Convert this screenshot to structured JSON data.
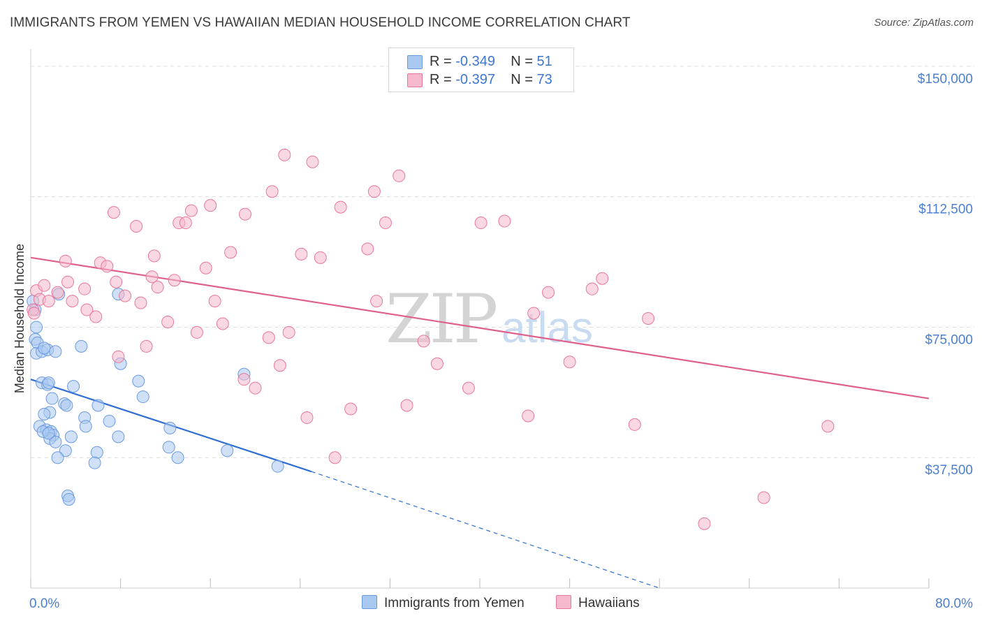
{
  "title": "IMMIGRANTS FROM YEMEN VS HAWAIIAN MEDIAN HOUSEHOLD INCOME CORRELATION CHART",
  "source": "Source: ZipAtlas.com",
  "watermark": {
    "zip": "ZIP",
    "atlas": "atlas"
  },
  "legend": {
    "rows": [
      {
        "r_label": "R =",
        "r_value": "-0.349",
        "n_label": "N =",
        "n_value": "51",
        "color": "#a9c8f0"
      },
      {
        "r_label": "R =",
        "r_value": "-0.397",
        "n_label": "N =",
        "n_value": "73",
        "color": "#f6b8cc"
      }
    ]
  },
  "bottom_legend": [
    {
      "label": "Immigrants from Yemen",
      "color": "#a9c8f0"
    },
    {
      "label": "Hawaiians",
      "color": "#f6b8cc"
    }
  ],
  "chart_data": {
    "type": "scatter",
    "title": "IMMIGRANTS FROM YEMEN VS HAWAIIAN MEDIAN HOUSEHOLD INCOME CORRELATION CHART",
    "xlabel": "",
    "ylabel": "Median Household Income",
    "xlim": [
      0,
      80
    ],
    "ylim": [
      0,
      155000
    ],
    "x_tick_labels": [
      "0.0%",
      "80.0%"
    ],
    "y_ticks": [
      37500,
      75000,
      112500,
      150000
    ],
    "y_tick_labels": [
      "$37,500",
      "$75,000",
      "$112,500",
      "$150,000"
    ],
    "series": [
      {
        "name": "Immigrants from Yemen",
        "color": "#6a9be0",
        "fill": "#a9c8f0",
        "points": [
          [
            0.2,
            82500
          ],
          [
            0.4,
            80000
          ],
          [
            0.5,
            75000
          ],
          [
            0.4,
            71500
          ],
          [
            0.6,
            70500
          ],
          [
            0.5,
            67500
          ],
          [
            1.0,
            68000
          ],
          [
            1.5,
            68500
          ],
          [
            1.2,
            69000
          ],
          [
            2.2,
            68000
          ],
          [
            2.5,
            84500
          ],
          [
            4.5,
            69500
          ],
          [
            7.8,
            84500
          ],
          [
            1.0,
            59000
          ],
          [
            1.5,
            58500
          ],
          [
            1.6,
            59000
          ],
          [
            3.8,
            58000
          ],
          [
            1.9,
            54500
          ],
          [
            3.0,
            53000
          ],
          [
            3.2,
            52500
          ],
          [
            6.0,
            52500
          ],
          [
            1.7,
            50500
          ],
          [
            1.2,
            50000
          ],
          [
            4.8,
            49000
          ],
          [
            7.0,
            48000
          ],
          [
            0.8,
            46500
          ],
          [
            1.4,
            45500
          ],
          [
            1.8,
            45000
          ],
          [
            2.0,
            44000
          ],
          [
            4.9,
            46500
          ],
          [
            7.8,
            43500
          ],
          [
            8.0,
            64500
          ],
          [
            9.6,
            59500
          ],
          [
            10.0,
            55000
          ],
          [
            12.4,
            46000
          ],
          [
            1.7,
            43000
          ],
          [
            2.2,
            42000
          ],
          [
            3.6,
            43500
          ],
          [
            3.1,
            39500
          ],
          [
            2.4,
            37500
          ],
          [
            5.9,
            39000
          ],
          [
            5.7,
            36000
          ],
          [
            12.3,
            40500
          ],
          [
            13.1,
            37500
          ],
          [
            17.5,
            39500
          ],
          [
            19.0,
            61500
          ],
          [
            22.0,
            35000
          ],
          [
            3.3,
            26500
          ],
          [
            3.4,
            25500
          ],
          [
            1.1,
            45000
          ],
          [
            1.6,
            44500
          ]
        ],
        "trend": {
          "x_start": 0,
          "y_start": 60000,
          "x_end": 25,
          "y_end": 33500,
          "dashed_to_x": 56,
          "dashed_to_y": 0
        }
      },
      {
        "name": "Hawaiians",
        "color": "#e8779c",
        "fill": "#f6b8cc",
        "points": [
          [
            0.2,
            80000
          ],
          [
            0.5,
            85500
          ],
          [
            0.8,
            83000
          ],
          [
            1.2,
            87000
          ],
          [
            1.6,
            82500
          ],
          [
            2.4,
            85000
          ],
          [
            3.1,
            94000
          ],
          [
            3.3,
            88000
          ],
          [
            3.7,
            82500
          ],
          [
            4.8,
            86000
          ],
          [
            5.0,
            80000
          ],
          [
            5.8,
            78000
          ],
          [
            6.2,
            93500
          ],
          [
            6.8,
            92500
          ],
          [
            7.6,
            88000
          ],
          [
            7.8,
            66500
          ],
          [
            7.4,
            108000
          ],
          [
            9.4,
            104000
          ],
          [
            8.4,
            84000
          ],
          [
            9.8,
            82000
          ],
          [
            10.3,
            69500
          ],
          [
            10.8,
            89500
          ],
          [
            11.3,
            86500
          ],
          [
            11.0,
            95500
          ],
          [
            12.2,
            76500
          ],
          [
            12.8,
            88500
          ],
          [
            13.2,
            105000
          ],
          [
            13.8,
            105000
          ],
          [
            14.3,
            108500
          ],
          [
            14.8,
            73500
          ],
          [
            15.6,
            92000
          ],
          [
            16.0,
            110000
          ],
          [
            16.4,
            82500
          ],
          [
            17.1,
            76000
          ],
          [
            17.8,
            96500
          ],
          [
            19.1,
            107500
          ],
          [
            19.0,
            60000
          ],
          [
            20.0,
            57500
          ],
          [
            21.2,
            72000
          ],
          [
            21.5,
            114000
          ],
          [
            22.2,
            64000
          ],
          [
            22.6,
            124500
          ],
          [
            23.0,
            73500
          ],
          [
            24.1,
            96000
          ],
          [
            24.6,
            49000
          ],
          [
            25.1,
            122500
          ],
          [
            25.8,
            95000
          ],
          [
            27.1,
            37500
          ],
          [
            27.6,
            109500
          ],
          [
            28.5,
            51500
          ],
          [
            30.0,
            97500
          ],
          [
            30.6,
            114000
          ],
          [
            30.8,
            82500
          ],
          [
            31.6,
            105000
          ],
          [
            32.8,
            118500
          ],
          [
            33.5,
            52500
          ],
          [
            35.0,
            71000
          ],
          [
            36.2,
            64500
          ],
          [
            39.0,
            57500
          ],
          [
            40.1,
            105000
          ],
          [
            42.2,
            105500
          ],
          [
            44.3,
            49500
          ],
          [
            44.8,
            79000
          ],
          [
            46.1,
            85000
          ],
          [
            48.0,
            65000
          ],
          [
            50.0,
            86000
          ],
          [
            50.9,
            89000
          ],
          [
            53.8,
            47000
          ],
          [
            55.0,
            77500
          ],
          [
            60.0,
            18500
          ],
          [
            65.3,
            26000
          ],
          [
            71.0,
            46500
          ],
          [
            0.3,
            79000
          ]
        ],
        "trend": {
          "x_start": 0,
          "y_start": 95000,
          "x_end": 80,
          "y_end": 54500
        }
      }
    ]
  }
}
